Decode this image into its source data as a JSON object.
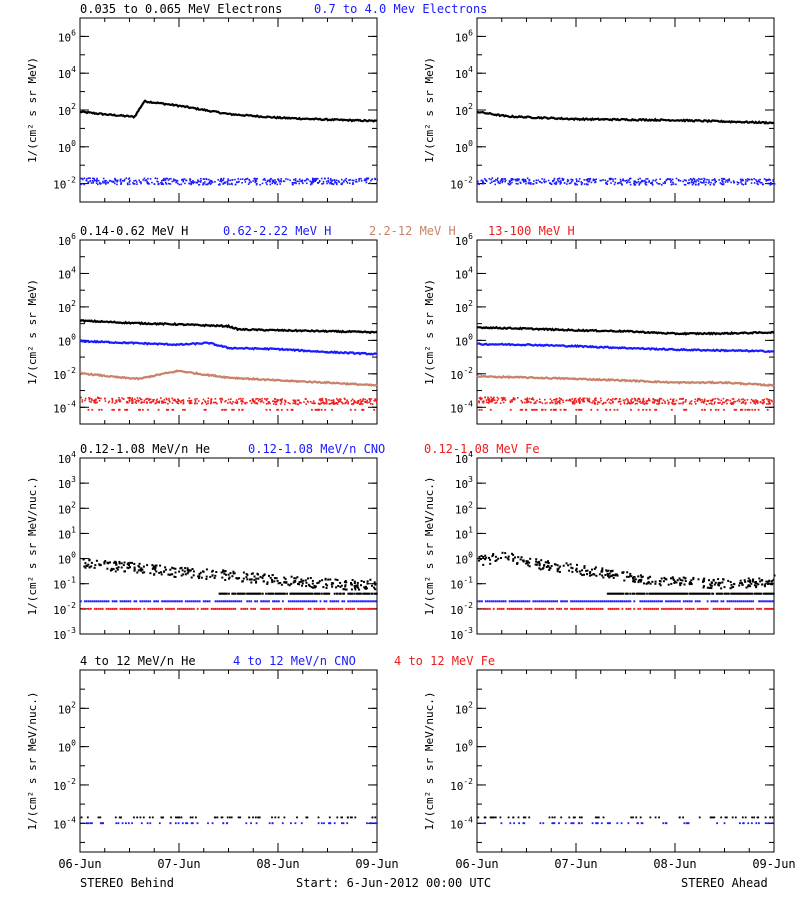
{
  "footer": {
    "left": "STEREO Behind",
    "center": "Start:  6-Jun-2012 00:00 UTC",
    "right": "STEREO Ahead"
  },
  "x_tick_labels": [
    "06-Jun",
    "07-Jun",
    "08-Jun",
    "09-Jun"
  ],
  "colors": {
    "black": "#000000",
    "blue": "#1a1aff",
    "tan": "#c8826a",
    "red": "#ee1c1c"
  },
  "chart_data": [
    {
      "type": "scatter",
      "row": 1,
      "side": "left",
      "titles": [
        {
          "text": "0.035 to 0.065 MeV Electrons",
          "color": "black"
        },
        {
          "text": "0.7 to 4.0 Mev Electrons",
          "color": "blue"
        }
      ],
      "ylabel": "1/(cm² s sr MeV)",
      "yscale": "log",
      "ylim_exp": [
        -3,
        7
      ],
      "y_ticks": [
        {
          "base": "10",
          "exp": "-2"
        },
        {
          "base": "10",
          "exp": "0"
        },
        {
          "base": "10",
          "exp": "2"
        },
        {
          "base": "10",
          "exp": "4"
        },
        {
          "base": "10",
          "exp": "6"
        }
      ],
      "xlim_days": [
        0,
        3
      ],
      "series": [
        {
          "color": "black",
          "style": "line",
          "x": [
            0,
            0.3,
            0.5,
            0.55,
            0.65,
            1.0,
            1.5,
            2.0,
            2.5,
            3.0
          ],
          "y": [
            80,
            55,
            45,
            42,
            300,
            170,
            60,
            38,
            30,
            25
          ]
        },
        {
          "color": "blue",
          "style": "noise",
          "x": [
            0,
            1.5,
            3.0
          ],
          "y": [
            0.015,
            0.014,
            0.015
          ]
        }
      ]
    },
    {
      "type": "scatter",
      "row": 1,
      "side": "right",
      "titles": [],
      "ylabel": "1/(cm² s sr MeV)",
      "yscale": "log",
      "ylim_exp": [
        -3,
        7
      ],
      "y_ticks": [
        {
          "base": "10",
          "exp": "-2"
        },
        {
          "base": "10",
          "exp": "0"
        },
        {
          "base": "10",
          "exp": "2"
        },
        {
          "base": "10",
          "exp": "4"
        },
        {
          "base": "10",
          "exp": "6"
        }
      ],
      "xlim_days": [
        0,
        3
      ],
      "series": [
        {
          "color": "black",
          "style": "line",
          "x": [
            0,
            0.3,
            1.0,
            2.0,
            3.0
          ],
          "y": [
            80,
            45,
            32,
            28,
            20
          ]
        },
        {
          "color": "blue",
          "style": "noise",
          "x": [
            0,
            1.5,
            3.0
          ],
          "y": [
            0.015,
            0.014,
            0.014
          ]
        }
      ]
    },
    {
      "type": "scatter",
      "row": 2,
      "side": "left",
      "titles": [
        {
          "text": "0.14-0.62 MeV H",
          "color": "black"
        },
        {
          "text": "0.62-2.22 MeV H",
          "color": "blue"
        },
        {
          "text": "2.2-12 MeV H",
          "color": "tan"
        },
        {
          "text": "13-100 MeV H",
          "color": "red"
        }
      ],
      "ylabel": "1/(cm² s sr MeV)",
      "yscale": "log",
      "ylim_exp": [
        -5,
        6
      ],
      "y_ticks": [
        {
          "base": "10",
          "exp": "-4"
        },
        {
          "base": "10",
          "exp": "-2"
        },
        {
          "base": "10",
          "exp": "0"
        },
        {
          "base": "10",
          "exp": "2"
        },
        {
          "base": "10",
          "exp": "4"
        },
        {
          "base": "10",
          "exp": "6"
        }
      ],
      "xlim_days": [
        0,
        3
      ],
      "series": [
        {
          "color": "black",
          "style": "line",
          "x": [
            0,
            0.5,
            1.0,
            1.5,
            1.6,
            2.0,
            2.5,
            3.0
          ],
          "y": [
            15,
            11,
            9,
            7,
            4.5,
            4,
            3.5,
            3
          ]
        },
        {
          "color": "blue",
          "style": "line",
          "x": [
            0,
            0.5,
            1.0,
            1.3,
            1.5,
            2.0,
            2.5,
            3.0
          ],
          "y": [
            0.9,
            0.7,
            0.55,
            0.7,
            0.35,
            0.3,
            0.2,
            0.15
          ]
        },
        {
          "color": "tan",
          "style": "line",
          "x": [
            0,
            0.4,
            0.6,
            0.8,
            1.0,
            1.2,
            1.5,
            2.0,
            2.5,
            3.0
          ],
          "y": [
            0.011,
            0.006,
            0.005,
            0.009,
            0.015,
            0.01,
            0.006,
            0.004,
            0.003,
            0.002
          ]
        },
        {
          "color": "red",
          "style": "noise",
          "x": [
            0,
            1.5,
            3.0
          ],
          "y": [
            0.0003,
            0.00025,
            0.00025
          ]
        },
        {
          "color": "red",
          "style": "sparse",
          "x": [
            0,
            1.5,
            3.0
          ],
          "y": [
            7e-05,
            7e-05,
            7e-05
          ]
        }
      ]
    },
    {
      "type": "scatter",
      "row": 2,
      "side": "right",
      "titles": [],
      "ylabel": "1/(cm² s sr MeV)",
      "yscale": "log",
      "ylim_exp": [
        -5,
        6
      ],
      "y_ticks": [
        {
          "base": "10",
          "exp": "-4"
        },
        {
          "base": "10",
          "exp": "-2"
        },
        {
          "base": "10",
          "exp": "0"
        },
        {
          "base": "10",
          "exp": "2"
        },
        {
          "base": "10",
          "exp": "4"
        },
        {
          "base": "10",
          "exp": "6"
        }
      ],
      "xlim_days": [
        0,
        3
      ],
      "series": [
        {
          "color": "black",
          "style": "line",
          "x": [
            0,
            0.5,
            1.0,
            1.5,
            2.0,
            2.5,
            3.0
          ],
          "y": [
            6,
            5,
            4,
            3.5,
            2.5,
            2.6,
            3
          ]
        },
        {
          "color": "blue",
          "style": "line",
          "x": [
            0,
            0.5,
            1.0,
            1.5,
            2.0,
            3.0
          ],
          "y": [
            0.6,
            0.55,
            0.45,
            0.35,
            0.28,
            0.22
          ]
        },
        {
          "color": "tan",
          "style": "line",
          "x": [
            0,
            0.5,
            1.0,
            1.5,
            2.0,
            2.5,
            3.0
          ],
          "y": [
            0.007,
            0.006,
            0.005,
            0.004,
            0.003,
            0.003,
            0.002
          ]
        },
        {
          "color": "red",
          "style": "noise",
          "x": [
            0,
            1.5,
            3.0
          ],
          "y": [
            0.0003,
            0.00025,
            0.00025
          ]
        },
        {
          "color": "red",
          "style": "sparse",
          "x": [
            0,
            1.5,
            3.0
          ],
          "y": [
            7e-05,
            7e-05,
            7e-05
          ]
        }
      ]
    },
    {
      "type": "scatter",
      "row": 3,
      "side": "left",
      "titles": [
        {
          "text": "0.12-1.08 MeV/n He",
          "color": "black"
        },
        {
          "text": "0.12-1.08 MeV/n CNO",
          "color": "blue"
        },
        {
          "text": "0.12-1.08 MeV Fe",
          "color": "red"
        }
      ],
      "ylabel": "1/(cm² s sr MeV/nuc.)",
      "yscale": "log",
      "ylim_exp": [
        -3,
        4
      ],
      "y_ticks": [
        {
          "base": "10",
          "exp": "-3"
        },
        {
          "base": "10",
          "exp": "-2"
        },
        {
          "base": "10",
          "exp": "-1"
        },
        {
          "base": "10",
          "exp": "0"
        },
        {
          "base": "10",
          "exp": "1"
        },
        {
          "base": "10",
          "exp": "2"
        },
        {
          "base": "10",
          "exp": "3"
        },
        {
          "base": "10",
          "exp": "4"
        }
      ],
      "xlim_days": [
        0,
        3
      ],
      "series": [
        {
          "color": "black",
          "style": "scatter",
          "x": [
            0,
            0.3,
            0.6,
            1.0,
            1.4,
            1.8,
            2.2,
            2.6,
            3.0
          ],
          "y": [
            0.7,
            0.55,
            0.45,
            0.3,
            0.25,
            0.18,
            0.13,
            0.1,
            0.1
          ]
        },
        {
          "color": "black",
          "style": "level",
          "x": [
            1.4,
            3.0
          ],
          "y": [
            0.04,
            0.04
          ]
        },
        {
          "color": "blue",
          "style": "level",
          "x": [
            0,
            3.0
          ],
          "y": [
            0.02,
            0.02
          ]
        },
        {
          "color": "red",
          "style": "level",
          "x": [
            0,
            3.0
          ],
          "y": [
            0.01,
            0.01
          ]
        }
      ]
    },
    {
      "type": "scatter",
      "row": 3,
      "side": "right",
      "titles": [],
      "ylabel": "1/(cm² s sr MeV/nuc.)",
      "yscale": "log",
      "ylim_exp": [
        -3,
        4
      ],
      "y_ticks": [
        {
          "base": "10",
          "exp": "-3"
        },
        {
          "base": "10",
          "exp": "-2"
        },
        {
          "base": "10",
          "exp": "-1"
        },
        {
          "base": "10",
          "exp": "0"
        },
        {
          "base": "10",
          "exp": "1"
        },
        {
          "base": "10",
          "exp": "2"
        },
        {
          "base": "10",
          "exp": "3"
        },
        {
          "base": "10",
          "exp": "4"
        }
      ],
      "xlim_days": [
        0,
        3
      ],
      "series": [
        {
          "color": "black",
          "style": "scatter",
          "x": [
            0,
            0.3,
            0.55,
            0.8,
            1.0,
            1.4,
            1.8,
            2.2,
            2.6,
            3.0
          ],
          "y": [
            0.9,
            1.3,
            0.7,
            0.5,
            0.4,
            0.25,
            0.15,
            0.12,
            0.1,
            0.15
          ]
        },
        {
          "color": "black",
          "style": "level",
          "x": [
            1.3,
            3.0
          ],
          "y": [
            0.04,
            0.04
          ]
        },
        {
          "color": "blue",
          "style": "level",
          "x": [
            0,
            3.0
          ],
          "y": [
            0.02,
            0.02
          ]
        },
        {
          "color": "red",
          "style": "level",
          "x": [
            0,
            3.0
          ],
          "y": [
            0.01,
            0.01
          ]
        }
      ]
    },
    {
      "type": "scatter",
      "row": 4,
      "side": "left",
      "titles": [
        {
          "text": "4 to 12 MeV/n He",
          "color": "black"
        },
        {
          "text": "4 to 12 MeV/n CNO",
          "color": "blue"
        },
        {
          "text": "4 to 12 MeV Fe",
          "color": "red"
        }
      ],
      "ylabel": "1/(cm² s sr MeV/nuc.)",
      "yscale": "log",
      "ylim_exp": [
        -5.5,
        4
      ],
      "y_ticks": [
        {
          "base": "10",
          "exp": "-4"
        },
        {
          "base": "10",
          "exp": "-2"
        },
        {
          "base": "10",
          "exp": "0"
        },
        {
          "base": "10",
          "exp": "2"
        }
      ],
      "xlim_days": [
        0,
        3
      ],
      "series": [
        {
          "color": "black",
          "style": "sparse",
          "x": [
            0,
            1.5,
            3.0
          ],
          "y": [
            0.0002,
            0.0002,
            0.0002
          ]
        },
        {
          "color": "blue",
          "style": "sparse",
          "x": [
            0,
            1.5,
            3.0
          ],
          "y": [
            0.0001,
            0.0001,
            0.0001
          ]
        }
      ]
    },
    {
      "type": "scatter",
      "row": 4,
      "side": "right",
      "titles": [],
      "ylabel": "1/(cm² s sr MeV/nuc.)",
      "yscale": "log",
      "ylim_exp": [
        -5.5,
        4
      ],
      "y_ticks": [
        {
          "base": "10",
          "exp": "-4"
        },
        {
          "base": "10",
          "exp": "-2"
        },
        {
          "base": "10",
          "exp": "0"
        },
        {
          "base": "10",
          "exp": "2"
        }
      ],
      "xlim_days": [
        0,
        3
      ],
      "series": [
        {
          "color": "black",
          "style": "sparse",
          "x": [
            0,
            1.5,
            3.0
          ],
          "y": [
            0.0002,
            0.0002,
            0.0002
          ]
        },
        {
          "color": "blue",
          "style": "sparse",
          "x": [
            0,
            1.5,
            3.0
          ],
          "y": [
            0.0001,
            0.0001,
            0.0001
          ]
        }
      ]
    }
  ]
}
